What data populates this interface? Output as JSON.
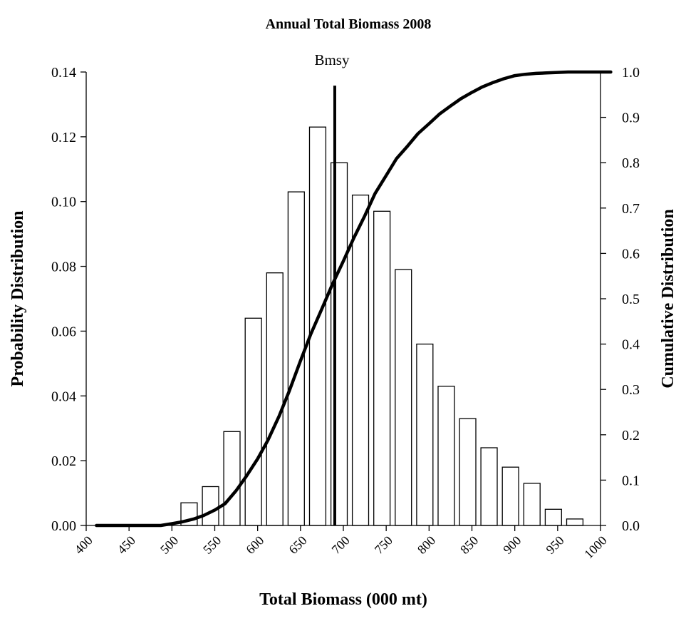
{
  "chart_data": {
    "type": "bar",
    "title": "Annual Total Biomass 2008",
    "xlabel": "Total Biomass (000 mt)",
    "ylabel": "Probability Distribution",
    "y2label": "Cumulative Distribution",
    "xlim": [
      400,
      1000
    ],
    "ylim": [
      0,
      0.14
    ],
    "y2lim": [
      0,
      1.0
    ],
    "x_ticks": [
      "400",
      "450",
      "500",
      "550",
      "600",
      "650",
      "700",
      "750",
      "800",
      "850",
      "900",
      "950",
      "1000"
    ],
    "y_ticks": [
      "0.00",
      "0.02",
      "0.04",
      "0.06",
      "0.08",
      "0.10",
      "0.12",
      "0.14"
    ],
    "y2_ticks": [
      "0.0",
      "0.1",
      "0.2",
      "0.3",
      "0.4",
      "0.5",
      "0.6",
      "0.7",
      "0.8",
      "0.9",
      "1.0"
    ],
    "grid": false,
    "series": [
      {
        "type": "bar",
        "axis": "left",
        "x": [
          520,
          545,
          570,
          595,
          620,
          645,
          670,
          695,
          720,
          745,
          770,
          795,
          820,
          845,
          870,
          895,
          920,
          945,
          970
        ],
        "values": [
          0.007,
          0.012,
          0.029,
          0.064,
          0.078,
          0.103,
          0.123,
          0.112,
          0.102,
          0.097,
          0.079,
          0.056,
          0.043,
          0.033,
          0.024,
          0.018,
          0.013,
          0.005,
          0.002
        ]
      },
      {
        "type": "line",
        "axis": "right",
        "x": [
          412,
          487,
          500,
          512,
          525,
          537,
          550,
          562,
          575,
          587,
          600,
          612,
          625,
          637,
          650,
          662,
          675,
          687,
          700,
          712,
          725,
          737,
          750,
          762,
          775,
          787,
          800,
          812,
          825,
          837,
          850,
          862,
          875,
          887,
          900,
          912,
          925,
          937,
          950,
          962,
          975,
          987,
          1012
        ],
        "values": [
          0.0,
          0.0,
          0.004,
          0.008,
          0.014,
          0.022,
          0.034,
          0.048,
          0.077,
          0.109,
          0.147,
          0.188,
          0.241,
          0.297,
          0.363,
          0.422,
          0.478,
          0.531,
          0.583,
          0.633,
          0.683,
          0.732,
          0.772,
          0.809,
          0.837,
          0.864,
          0.886,
          0.907,
          0.925,
          0.941,
          0.955,
          0.967,
          0.977,
          0.985,
          0.992,
          0.995,
          0.997,
          0.998,
          0.999,
          1.0,
          1.0,
          1.0,
          1.0
        ]
      }
    ],
    "annotations": [
      {
        "label": "Bmsy",
        "x": 690,
        "y2_top": 0.97
      }
    ]
  }
}
